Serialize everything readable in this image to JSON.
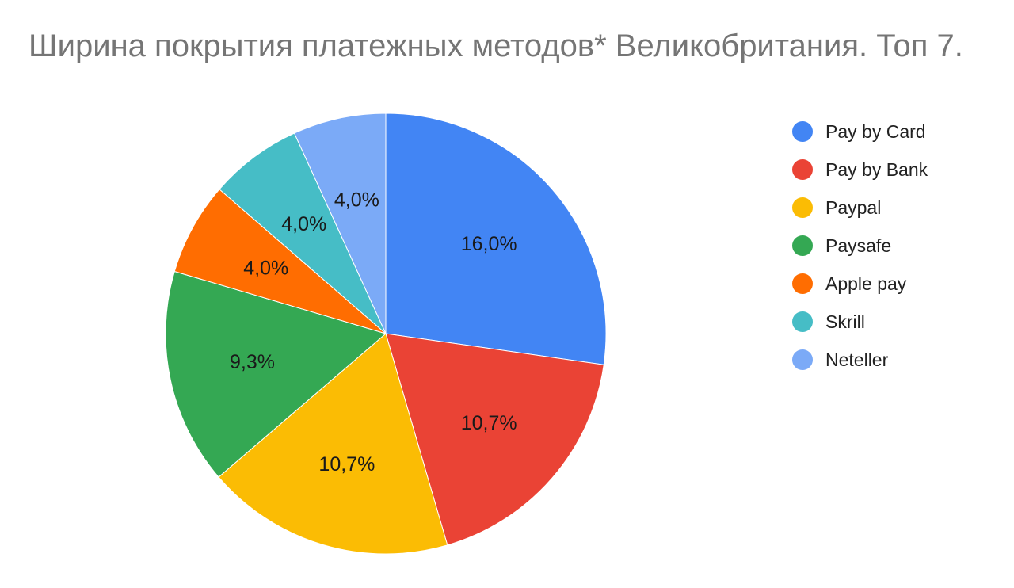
{
  "chart_data": {
    "type": "pie",
    "title": "Ширина покрытия платежных методов* Великобритания. Топ 7.",
    "legend_position": "right",
    "categories": [
      "Pay by Card",
      "Pay by Bank",
      "Paypal",
      "Paysafe",
      "Apple pay",
      "Skrill",
      "Neteller"
    ],
    "values": [
      16.0,
      10.7,
      10.7,
      9.3,
      4.0,
      4.0,
      4.0
    ],
    "data_labels": [
      "16,0%",
      "10,7%",
      "10,7%",
      "9,3%",
      "4,0%",
      "4,0%",
      "4,0%"
    ],
    "colors": [
      "#4285F4",
      "#EA4335",
      "#FBBC04",
      "#34A853",
      "#FF6D01",
      "#46BDC6",
      "#7BAAF7"
    ]
  },
  "legend": {
    "items": [
      {
        "label": "Pay by Card",
        "color": "#4285F4"
      },
      {
        "label": "Pay by Bank",
        "color": "#EA4335"
      },
      {
        "label": "Paypal",
        "color": "#FBBC04"
      },
      {
        "label": "Paysafe",
        "color": "#34A853"
      },
      {
        "label": "Apple pay",
        "color": "#FF6D01"
      },
      {
        "label": "Skrill",
        "color": "#46BDC6"
      },
      {
        "label": "Neteller",
        "color": "#7BAAF7"
      }
    ]
  }
}
